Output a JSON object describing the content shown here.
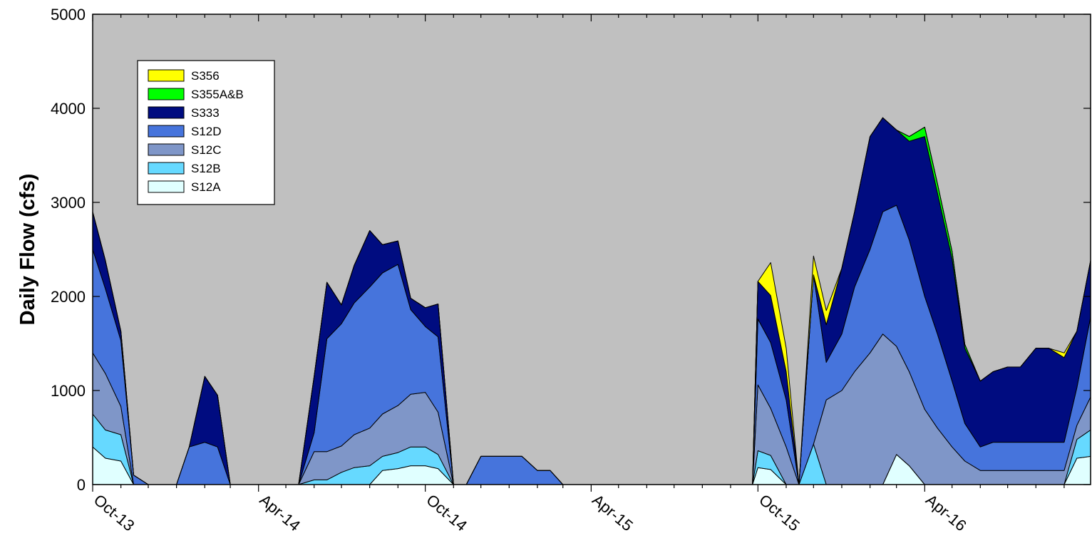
{
  "chart_data": {
    "type": "area",
    "stacked": true,
    "title": "",
    "xlabel": "",
    "ylabel": "Daily Flow (cfs)",
    "ylim": [
      0,
      5000
    ],
    "xlim": [
      "2013-10-01",
      "2016-09-30"
    ],
    "yticks": [
      0,
      1000,
      2000,
      3000,
      4000,
      5000
    ],
    "xticks": [
      {
        "label": "Oct-13",
        "date": "2013-10-01"
      },
      {
        "label": "Apr-14",
        "date": "2014-04-01"
      },
      {
        "label": "Oct-14",
        "date": "2014-10-01"
      },
      {
        "label": "Apr-15",
        "date": "2015-04-01"
      },
      {
        "label": "Oct-15",
        "date": "2015-10-01"
      },
      {
        "label": "Apr-16",
        "date": "2016-04-01"
      }
    ],
    "grid": false,
    "plot_background": "#c0c0c0",
    "legend": {
      "position": "top-left",
      "order": [
        "S356",
        "S355A&B",
        "S333",
        "S12D",
        "S12C",
        "S12B",
        "S12A"
      ]
    },
    "x": [
      "2013-10-01",
      "2013-10-15",
      "2013-11-01",
      "2013-11-15",
      "2013-12-01",
      "2013-12-10",
      "2013-12-20",
      "2014-01-01",
      "2014-01-15",
      "2014-02-01",
      "2014-02-15",
      "2014-03-01",
      "2014-03-10",
      "2014-03-20",
      "2014-04-01",
      "2014-04-10",
      "2014-04-20",
      "2014-05-01",
      "2014-05-15",
      "2014-06-01",
      "2014-06-15",
      "2014-07-01",
      "2014-07-15",
      "2014-08-01",
      "2014-08-15",
      "2014-09-01",
      "2014-09-15",
      "2014-10-01",
      "2014-10-15",
      "2014-11-01",
      "2014-11-15",
      "2014-12-01",
      "2014-12-15",
      "2015-01-01",
      "2015-01-15",
      "2015-02-01",
      "2015-02-15",
      "2015-03-01",
      "2015-03-15",
      "2015-04-01",
      "2015-06-01",
      "2015-09-25",
      "2015-10-01",
      "2015-10-15",
      "2015-11-01",
      "2015-11-15",
      "2015-12-01",
      "2015-12-15",
      "2016-01-01",
      "2016-01-15",
      "2016-02-01",
      "2016-02-15",
      "2016-03-01",
      "2016-03-15",
      "2016-04-01",
      "2016-04-15",
      "2016-05-01",
      "2016-05-15",
      "2016-06-01",
      "2016-06-15",
      "2016-07-01",
      "2016-07-15",
      "2016-08-01",
      "2016-08-15",
      "2016-09-01",
      "2016-09-15",
      "2016-09-30"
    ],
    "series": [
      {
        "name": "S12A",
        "color": "#e0ffff",
        "values": [
          400,
          280,
          250,
          0,
          0,
          0,
          0,
          0,
          0,
          0,
          0,
          0,
          0,
          0,
          0,
          0,
          0,
          0,
          0,
          0,
          0,
          0,
          0,
          0,
          150,
          170,
          200,
          200,
          170,
          0,
          0,
          0,
          0,
          0,
          0,
          0,
          0,
          0,
          0,
          0,
          0,
          0,
          180,
          160,
          0,
          0,
          0,
          0,
          0,
          0,
          0,
          0,
          320,
          200,
          0,
          0,
          0,
          0,
          0,
          0,
          0,
          0,
          0,
          0,
          0,
          280,
          300
        ]
      },
      {
        "name": "S12B",
        "color": "#66d9ff",
        "values": [
          350,
          300,
          280,
          0,
          0,
          0,
          0,
          0,
          0,
          0,
          0,
          0,
          0,
          0,
          0,
          0,
          0,
          0,
          0,
          50,
          50,
          130,
          180,
          200,
          150,
          170,
          200,
          200,
          150,
          0,
          0,
          0,
          0,
          0,
          0,
          0,
          0,
          0,
          0,
          0,
          0,
          0,
          180,
          150,
          0,
          0,
          430,
          0,
          0,
          0,
          0,
          0,
          0,
          0,
          0,
          0,
          0,
          0,
          0,
          0,
          0,
          0,
          0,
          0,
          0,
          200,
          280
        ]
      },
      {
        "name": "S12C",
        "color": "#7f96c8",
        "values": [
          650,
          600,
          300,
          0,
          0,
          0,
          0,
          0,
          0,
          0,
          0,
          0,
          0,
          0,
          0,
          0,
          0,
          0,
          0,
          300,
          300,
          280,
          350,
          400,
          450,
          500,
          560,
          580,
          450,
          0,
          0,
          0,
          0,
          0,
          0,
          0,
          0,
          0,
          0,
          0,
          0,
          0,
          700,
          500,
          400,
          0,
          0,
          900,
          1000,
          1200,
          1400,
          1600,
          1150,
          1000,
          800,
          600,
          400,
          250,
          150,
          150,
          150,
          150,
          150,
          150,
          150,
          150,
          350
        ]
      },
      {
        "name": "S12D",
        "color": "#4674dc",
        "values": [
          1100,
          900,
          700,
          100,
          0,
          0,
          0,
          0,
          400,
          450,
          400,
          0,
          0,
          0,
          0,
          0,
          0,
          0,
          0,
          200,
          1200,
          1300,
          1400,
          1500,
          1500,
          1500,
          900,
          700,
          800,
          0,
          0,
          300,
          300,
          300,
          300,
          150,
          150,
          0,
          0,
          0,
          0,
          0,
          700,
          700,
          500,
          0,
          1800,
          400,
          600,
          900,
          1100,
          1300,
          1500,
          1400,
          1200,
          1000,
          700,
          400,
          250,
          300,
          300,
          300,
          300,
          300,
          300,
          400,
          850
        ]
      },
      {
        "name": "S333",
        "color": "#000c80",
        "values": [
          400,
          300,
          100,
          0,
          0,
          0,
          0,
          0,
          0,
          700,
          550,
          0,
          0,
          0,
          0,
          0,
          0,
          0,
          0,
          600,
          600,
          200,
          400,
          600,
          300,
          250,
          120,
          200,
          350,
          0,
          0,
          0,
          0,
          0,
          0,
          0,
          0,
          0,
          0,
          0,
          0,
          0,
          400,
          500,
          300,
          0,
          0,
          400,
          700,
          800,
          1200,
          1000,
          800,
          1050,
          1700,
          1500,
          1300,
          800,
          700,
          750,
          800,
          800,
          1000,
          1000,
          900,
          600,
          600
        ]
      },
      {
        "name": "S355A&B",
        "color": "#00ff00",
        "values": [
          0,
          0,
          0,
          0,
          0,
          0,
          0,
          0,
          0,
          0,
          0,
          0,
          0,
          0,
          0,
          0,
          0,
          0,
          0,
          0,
          0,
          0,
          0,
          0,
          0,
          0,
          0,
          0,
          0,
          0,
          0,
          0,
          0,
          0,
          0,
          0,
          0,
          0,
          0,
          0,
          0,
          0,
          0,
          0,
          0,
          0,
          0,
          0,
          0,
          0,
          0,
          0,
          0,
          50,
          100,
          100,
          80,
          40,
          0,
          0,
          0,
          0,
          0,
          0,
          0,
          0,
          0
        ]
      },
      {
        "name": "S356",
        "color": "#ffff00",
        "values": [
          0,
          0,
          0,
          0,
          0,
          0,
          0,
          0,
          0,
          0,
          0,
          0,
          0,
          0,
          0,
          0,
          0,
          0,
          0,
          0,
          0,
          0,
          0,
          0,
          0,
          0,
          0,
          0,
          0,
          0,
          0,
          0,
          0,
          0,
          0,
          0,
          0,
          0,
          0,
          0,
          0,
          0,
          0,
          350,
          250,
          0,
          200,
          150,
          0,
          0,
          0,
          0,
          0,
          0,
          0,
          0,
          0,
          0,
          0,
          0,
          0,
          0,
          0,
          0,
          50,
          0,
          0
        ]
      }
    ]
  }
}
